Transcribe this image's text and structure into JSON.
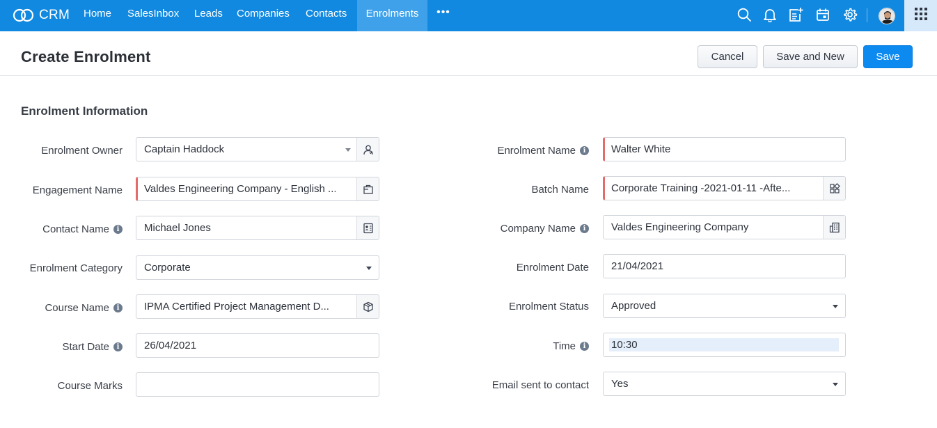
{
  "app": {
    "name": "CRM"
  },
  "nav": {
    "items": [
      "Home",
      "SalesInbox",
      "Leads",
      "Companies",
      "Contacts",
      "Enrolments"
    ],
    "active": "Enrolments",
    "more": "•••"
  },
  "topbar_icons": [
    "search-icon",
    "bell-icon",
    "add-note-icon",
    "calendar-icon",
    "gear-icon",
    "avatar",
    "apps-grid-icon"
  ],
  "header": {
    "title": "Create Enrolment",
    "cancel": "Cancel",
    "save_and_new": "Save and New",
    "save": "Save"
  },
  "section": {
    "title": "Enrolment Information"
  },
  "form": {
    "left": [
      {
        "label": "Enrolment Owner",
        "value": "Captain Haddock",
        "type": "lookup-select",
        "icon": "user-icon"
      },
      {
        "label": "Engagement Name",
        "value": "Valdes Engineering Company - English ...",
        "type": "lookup",
        "required": true,
        "icon": "briefcase-icon"
      },
      {
        "label": "Contact Name",
        "value": "Michael Jones",
        "type": "lookup",
        "info": true,
        "icon": "contact-card-icon"
      },
      {
        "label": "Enrolment Category",
        "value": "Corporate",
        "type": "select"
      },
      {
        "label": "Course Name",
        "value": "IPMA Certified Project Management D...",
        "type": "lookup",
        "info": true,
        "icon": "box-icon"
      },
      {
        "label": "Start Date",
        "value": "26/04/2021",
        "type": "text",
        "info": true
      },
      {
        "label": "Course Marks",
        "value": "",
        "type": "text"
      }
    ],
    "right": [
      {
        "label": "Enrolment Name",
        "value": "Walter White",
        "type": "text",
        "required": true,
        "info": true
      },
      {
        "label": "Batch Name",
        "value": "Corporate Training -2021-01-11 -Afte...",
        "type": "lookup",
        "required": true,
        "icon": "batch-icon"
      },
      {
        "label": "Company Name",
        "value": "Valdes Engineering Company",
        "type": "lookup",
        "info": true,
        "icon": "building-icon"
      },
      {
        "label": "Enrolment Date",
        "value": "21/04/2021",
        "type": "text"
      },
      {
        "label": "Enrolment Status",
        "value": "Approved",
        "type": "select"
      },
      {
        "label": "Time",
        "value": "10:30",
        "type": "time",
        "info": true
      },
      {
        "label": "Email sent to contact",
        "value": "Yes",
        "type": "select"
      }
    ]
  },
  "colors": {
    "topbar": "#1189e0",
    "active_tab": "#3fa1ea",
    "primary_button": "#0d8af0",
    "required_marker": "#e56b6b"
  }
}
